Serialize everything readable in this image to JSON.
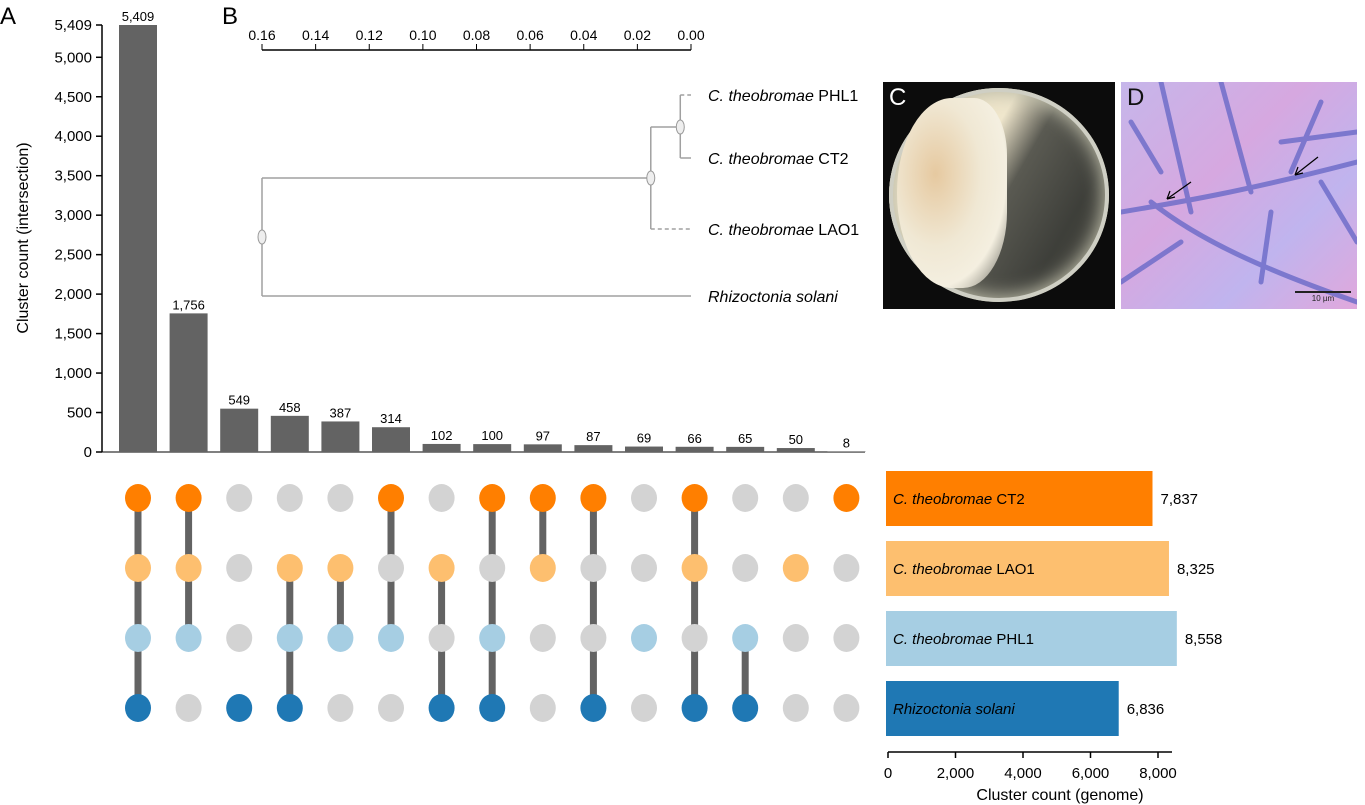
{
  "panel_labels": {
    "a": "A",
    "b": "B",
    "c": "C",
    "d": "D"
  },
  "chart_data": {
    "type": "upset",
    "intersection_bars": {
      "ylabel": "Cluster count (intersection)",
      "yticks": [
        0,
        500,
        1000,
        1500,
        2000,
        2500,
        3000,
        3500,
        4000,
        4500,
        5000,
        5409
      ],
      "ytick_labels": [
        "0",
        "500",
        "1,000",
        "1,500",
        "2,000",
        "2,500",
        "3,000",
        "3,500",
        "4,000",
        "4,500",
        "5,000",
        "5,409"
      ],
      "ylim": [
        0,
        5409
      ],
      "values": [
        5409,
        1756,
        549,
        458,
        387,
        314,
        102,
        100,
        97,
        87,
        69,
        66,
        65,
        50,
        8
      ],
      "value_labels": [
        "5,409",
        "1,756",
        "549",
        "458",
        "387",
        "314",
        "102",
        "100",
        "97",
        "87",
        "69",
        "66",
        "65",
        "50",
        "8"
      ],
      "color": "#636363"
    },
    "sets": [
      {
        "italic": "C. theobromae",
        "strain": "CT2",
        "color": "#ff7f00",
        "size": 7837,
        "size_label": "7,837"
      },
      {
        "italic": "C. theobromae",
        "strain": "LAO1",
        "color": "#fdbf6f",
        "size": 8325,
        "size_label": "8,325"
      },
      {
        "italic": "C. theobromae",
        "strain": "PHL1",
        "color": "#a6cee3",
        "size": 8558,
        "size_label": "8,558"
      },
      {
        "italic": "Rhizoctonia solani",
        "strain": "",
        "color": "#1f78b4",
        "size": 6836,
        "size_label": "6,836"
      }
    ],
    "membership": [
      [
        1,
        1,
        1,
        1
      ],
      [
        1,
        1,
        1,
        0
      ],
      [
        0,
        0,
        0,
        1
      ],
      [
        0,
        1,
        1,
        1
      ],
      [
        0,
        1,
        1,
        0
      ],
      [
        1,
        0,
        1,
        0
      ],
      [
        0,
        1,
        0,
        1
      ],
      [
        1,
        0,
        1,
        1
      ],
      [
        1,
        1,
        0,
        0
      ],
      [
        1,
        0,
        0,
        1
      ],
      [
        0,
        0,
        1,
        0
      ],
      [
        1,
        1,
        0,
        1
      ],
      [
        0,
        0,
        1,
        1
      ],
      [
        0,
        1,
        0,
        0
      ],
      [
        1,
        0,
        0,
        0
      ]
    ],
    "inactive_dot_color": "#d3d3d3",
    "set_size_axis": {
      "xlabel": "Cluster count (genome)",
      "xticks": [
        0,
        2000,
        4000,
        6000,
        8000
      ],
      "xtick_labels": [
        "0",
        "2,000",
        "4,000",
        "6,000",
        "8,000"
      ],
      "xlim": [
        0,
        8000
      ]
    }
  },
  "tree": {
    "scale_ticks": [
      0.16,
      0.14,
      0.12,
      0.1,
      0.08,
      0.06,
      0.04,
      0.02,
      0.0
    ],
    "scale_tick_labels": [
      "0.16",
      "0.14",
      "0.12",
      "0.10",
      "0.08",
      "0.06",
      "0.04",
      "0.02",
      "0.00"
    ],
    "leaves": [
      {
        "italic": "C. theobromae",
        "strain": "PHL1"
      },
      {
        "italic": "C. theobromae",
        "strain": "CT2"
      },
      {
        "italic": "C. theobromae",
        "strain": "LAO1"
      },
      {
        "italic": "Rhizoctonia solani",
        "strain": ""
      }
    ],
    "node_heights": {
      "phl1_ct2": 0.004,
      "theobromae_clade": 0.015,
      "root": 0.16
    }
  },
  "photo_d": {
    "scale_bar_label": "10 µm"
  }
}
